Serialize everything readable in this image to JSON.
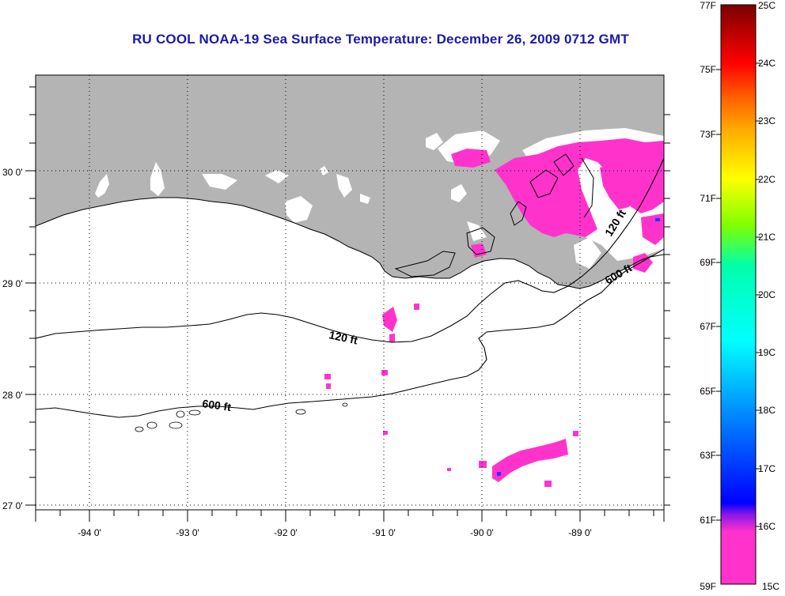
{
  "title": "RU COOL  NOAA-19  Sea Surface Temperature:  December 26, 2009 0712 GMT",
  "lat_labels": [
    "30 0'",
    "29 0'",
    "28 0'",
    "27 0'"
  ],
  "lon_labels": [
    "-94 0'",
    "-93 0'",
    "-92 0'",
    "-91 0'",
    "-90 0'",
    "-89 0'"
  ],
  "contour_labels": {
    "c120_west": "120 ft",
    "c120_east": "120 ft",
    "c600_west": "600 ft",
    "c600_east": "600 ft"
  },
  "colorbar": {
    "fahrenheit": [
      "77F",
      "75F",
      "73F",
      "71F",
      "69F",
      "67F",
      "65F",
      "63F",
      "61F",
      "59F"
    ],
    "celsius": [
      "25C",
      "24C",
      "23C",
      "22C",
      "21C",
      "20C",
      "19C",
      "18C",
      "17C",
      "16C",
      "15C"
    ]
  },
  "colors": {
    "land": "#b4b4b4",
    "sst_cold": "#ff33cc",
    "title": "#1a1aa8"
  }
}
